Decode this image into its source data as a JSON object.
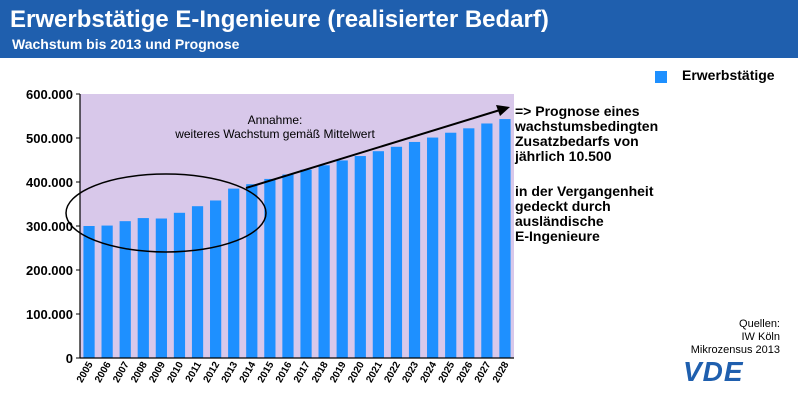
{
  "title": "Erwerbstätige E-Ingenieure (realisierter Bedarf)",
  "subtitle": "Wachstum bis 2013 und Prognose",
  "legend": "Erwerbstätige",
  "annotation": [
    "Annahme:",
    "weiteres Wachstum gemäß Mittelwert"
  ],
  "note_forecast": [
    "=> Prognose eines",
    "wachstumsbedingten",
    "Zusatzbedarfs von",
    "jährlich 10.500"
  ],
  "note_past": [
    "in der Vergangenheit",
    "gedeckt durch",
    "ausländische",
    "E-Ingenieure"
  ],
  "sources": [
    "Quellen:",
    "IW Köln",
    "Mikrozensus 2013"
  ],
  "logo": "VDE",
  "colors": {
    "header": "#1f5fae",
    "bar": "#1e90ff",
    "plot_bg": "#d8c8ea"
  },
  "chart_data": {
    "type": "bar",
    "categories": [
      "2005",
      "2006",
      "2007",
      "2008",
      "2009",
      "2010",
      "2011",
      "2012",
      "2013",
      "2014",
      "2015",
      "2016",
      "2017",
      "2018",
      "2019",
      "2020",
      "2021",
      "2022",
      "2023",
      "2024",
      "2025",
      "2026",
      "2027",
      "2028"
    ],
    "series": [
      {
        "name": "Erwerbstätige",
        "values": [
          300000,
          301000,
          311000,
          318000,
          317000,
          330000,
          345000,
          358000,
          385000,
          395000,
          407000,
          417000,
          428000,
          438000,
          449000,
          459000,
          470000,
          480000,
          491000,
          501000,
          512000,
          522000,
          533000,
          543000
        ]
      }
    ],
    "ylim": [
      0,
      600000
    ],
    "yticks": [
      0,
      100000,
      200000,
      300000,
      400000,
      500000,
      600000
    ],
    "ytick_labels": [
      "0",
      "100.000",
      "200.000",
      "300.000",
      "400.000",
      "500.000",
      "600.000"
    ],
    "grid": false,
    "legend_position": "top-right"
  }
}
